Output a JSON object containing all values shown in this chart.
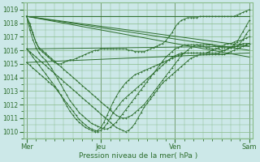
{
  "title": "",
  "xlabel": "Pression niveau de la mer( hPa )",
  "ylabel": "",
  "bg_color": "#cce8e8",
  "grid_color": "#88bb88",
  "line_color": "#2d6e2d",
  "marker": "+",
  "ylim": [
    1009.5,
    1019.5
  ],
  "yticks": [
    1010,
    1011,
    1012,
    1013,
    1014,
    1015,
    1016,
    1017,
    1018,
    1019
  ],
  "xtick_labels": [
    "Mer",
    "Jeu",
    "Ven",
    "Sam"
  ],
  "xtick_positions": [
    0,
    96,
    192,
    288
  ],
  "xlim": [
    -4,
    292
  ],
  "vlines": [
    0,
    96,
    192,
    288
  ],
  "series": [
    {
      "x": [
        0,
        288
      ],
      "y": [
        1018.5,
        1018.5
      ],
      "smooth": false
    },
    {
      "x": [
        0,
        288
      ],
      "y": [
        1018.5,
        1016.3
      ],
      "smooth": false
    },
    {
      "x": [
        0,
        288
      ],
      "y": [
        1018.5,
        1015.5
      ],
      "smooth": false
    },
    {
      "x": [
        0,
        288
      ],
      "y": [
        1018.5,
        1016.0
      ],
      "smooth": false
    },
    {
      "x": [
        0,
        288
      ],
      "y": [
        1016.1,
        1016.3
      ],
      "smooth": false
    },
    {
      "x": [
        0,
        288
      ],
      "y": [
        1015.1,
        1015.8
      ],
      "smooth": false
    }
  ],
  "curved_series": [
    [
      1018.5,
      1018.0,
      1017.3,
      1016.6,
      1016.1,
      1015.9,
      1015.7,
      1015.5,
      1015.3,
      1015.1,
      1015.0,
      1015.0,
      1015.1,
      1015.2,
      1015.3,
      1015.3,
      1015.4,
      1015.5,
      1015.6,
      1015.7,
      1015.8,
      1015.9,
      1016.0,
      1016.0,
      1016.1,
      1016.1,
      1016.1,
      1016.1,
      1016.1,
      1016.1,
      1016.1,
      1016.1,
      1016.1,
      1016.0,
      1016.0,
      1015.9,
      1015.9,
      1015.9,
      1015.9,
      1016.0,
      1016.1,
      1016.2,
      1016.3,
      1016.4,
      1016.5,
      1016.7,
      1017.0,
      1017.3,
      1017.7,
      1018.0,
      1018.2,
      1018.3,
      1018.4,
      1018.4,
      1018.4,
      1018.4,
      1018.5,
      1018.5,
      1018.5,
      1018.5,
      1018.5,
      1018.5,
      1018.5,
      1018.5,
      1018.5,
      1018.5,
      1018.5,
      1018.5,
      1018.6,
      1018.7,
      1018.8,
      1018.9,
      1019.0
    ],
    [
      1018.5,
      1017.8,
      1017.2,
      1016.6,
      1016.2,
      1016.0,
      1015.8,
      1015.6,
      1015.4,
      1015.2,
      1015.0,
      1014.8,
      1014.6,
      1014.4,
      1014.2,
      1014.0,
      1013.8,
      1013.6,
      1013.4,
      1013.2,
      1013.0,
      1012.8,
      1012.6,
      1012.4,
      1012.2,
      1012.0,
      1011.8,
      1011.6,
      1011.4,
      1011.2,
      1011.1,
      1011.0,
      1011.0,
      1011.1,
      1011.2,
      1011.4,
      1011.6,
      1011.8,
      1012.0,
      1012.3,
      1012.6,
      1012.9,
      1013.2,
      1013.5,
      1013.8,
      1014.1,
      1014.4,
      1014.7,
      1015.0,
      1015.3,
      1015.6,
      1015.8,
      1016.0,
      1016.2,
      1016.3,
      1016.4,
      1016.4,
      1016.4,
      1016.4,
      1016.4,
      1016.4,
      1016.3,
      1016.3,
      1016.2,
      1016.2,
      1016.2,
      1016.2,
      1016.2,
      1016.3,
      1016.5,
      1016.8,
      1017.2,
      1017.5
    ],
    [
      1018.5,
      1017.5,
      1016.8,
      1016.2,
      1015.8,
      1015.5,
      1015.3,
      1015.0,
      1014.7,
      1014.3,
      1013.9,
      1013.5,
      1013.1,
      1012.7,
      1012.3,
      1012.0,
      1011.7,
      1011.4,
      1011.2,
      1011.0,
      1010.8,
      1010.6,
      1010.5,
      1010.4,
      1010.3,
      1010.2,
      1010.2,
      1010.3,
      1010.5,
      1010.7,
      1011.0,
      1011.3,
      1011.6,
      1011.9,
      1012.2,
      1012.5,
      1012.8,
      1013.1,
      1013.4,
      1013.7,
      1014.0,
      1014.3,
      1014.6,
      1014.9,
      1015.2,
      1015.5,
      1015.7,
      1015.9,
      1016.1,
      1016.2,
      1016.3,
      1016.4,
      1016.4,
      1016.4,
      1016.4,
      1016.4,
      1016.3,
      1016.3,
      1016.2,
      1016.2,
      1016.1,
      1016.1,
      1016.1,
      1016.0,
      1016.0,
      1016.1,
      1016.2,
      1016.4,
      1016.6,
      1017.0,
      1017.4,
      1017.8,
      1018.2
    ],
    [
      1016.1,
      1015.9,
      1015.7,
      1015.5,
      1015.3,
      1015.1,
      1014.9,
      1014.7,
      1014.5,
      1014.3,
      1014.1,
      1013.9,
      1013.7,
      1013.5,
      1013.3,
      1013.1,
      1012.9,
      1012.7,
      1012.5,
      1012.3,
      1012.1,
      1011.9,
      1011.7,
      1011.5,
      1011.3,
      1011.1,
      1010.9,
      1010.7,
      1010.5,
      1010.3,
      1010.2,
      1010.1,
      1010.0,
      1010.1,
      1010.3,
      1010.6,
      1011.0,
      1011.4,
      1011.8,
      1012.1,
      1012.4,
      1012.7,
      1013.0,
      1013.3,
      1013.6,
      1013.8,
      1014.0,
      1014.2,
      1014.4,
      1014.6,
      1014.8,
      1015.0,
      1015.2,
      1015.4,
      1015.5,
      1015.6,
      1015.7,
      1015.7,
      1015.7,
      1015.7,
      1015.7,
      1015.7,
      1015.7,
      1015.7,
      1015.7,
      1015.8,
      1015.9,
      1016.0,
      1016.1,
      1016.2,
      1016.3,
      1016.4,
      1016.5
    ],
    [
      1015.1,
      1014.9,
      1014.7,
      1014.5,
      1014.3,
      1014.1,
      1013.9,
      1013.7,
      1013.5,
      1013.3,
      1013.0,
      1012.7,
      1012.4,
      1012.1,
      1011.8,
      1011.5,
      1011.2,
      1010.9,
      1010.7,
      1010.5,
      1010.3,
      1010.2,
      1010.1,
      1010.0,
      1010.1,
      1010.3,
      1010.6,
      1011.0,
      1011.4,
      1011.7,
      1012.0,
      1012.3,
      1012.5,
      1012.7,
      1012.9,
      1013.1,
      1013.3,
      1013.5,
      1013.7,
      1013.9,
      1014.1,
      1014.3,
      1014.5,
      1014.7,
      1014.9,
      1015.1,
      1015.3,
      1015.4,
      1015.5,
      1015.6,
      1015.7,
      1015.8,
      1015.8,
      1015.8,
      1015.8,
      1015.8,
      1015.8,
      1015.8,
      1015.8,
      1015.8,
      1015.8,
      1015.8,
      1015.8,
      1015.9,
      1016.0,
      1016.1,
      1016.2,
      1016.3,
      1016.3,
      1016.4,
      1016.5,
      1016.5,
      1016.5
    ],
    [
      1016.1,
      1015.8,
      1015.5,
      1015.2,
      1014.9,
      1014.6,
      1014.3,
      1014.0,
      1013.7,
      1013.4,
      1013.1,
      1012.7,
      1012.3,
      1011.9,
      1011.5,
      1011.2,
      1010.9,
      1010.7,
      1010.5,
      1010.3,
      1010.2,
      1010.1,
      1010.0,
      1010.1,
      1010.3,
      1010.7,
      1011.2,
      1011.7,
      1012.2,
      1012.6,
      1013.0,
      1013.3,
      1013.6,
      1013.8,
      1014.0,
      1014.2,
      1014.3,
      1014.4,
      1014.5,
      1014.6,
      1014.7,
      1014.8,
      1014.9,
      1015.0,
      1015.1,
      1015.2,
      1015.3,
      1015.5,
      1015.6,
      1015.7,
      1015.8,
      1015.8,
      1015.8,
      1015.8,
      1015.8,
      1015.8,
      1015.8,
      1015.8,
      1015.8,
      1015.9,
      1016.0,
      1016.1,
      1016.2,
      1016.3,
      1016.4,
      1016.5,
      1016.5,
      1016.6,
      1016.7,
      1016.7,
      1016.8,
      1016.9,
      1017.0
    ]
  ]
}
